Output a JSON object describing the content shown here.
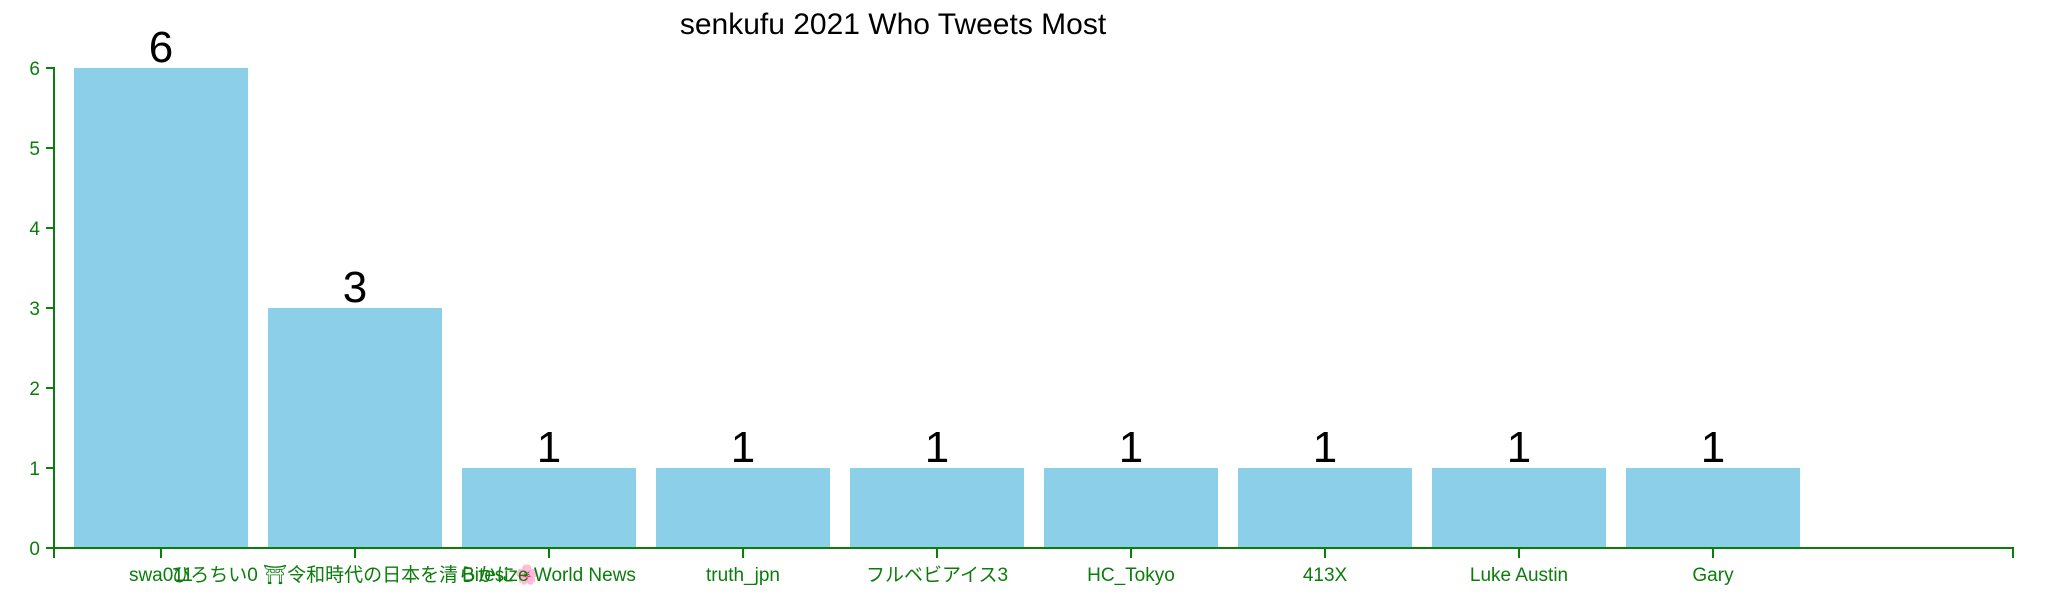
{
  "chart_data": {
    "type": "bar",
    "title": "senkufu 2021 Who Tweets Most",
    "xlabel": "",
    "ylabel": "",
    "categories": [
      "swa011",
      "ひろちい0 ⛩令和時代の日本を清らかに🌸",
      "Bitesize World News",
      "truth_jpn",
      "フルベビアイス3",
      "HC_Tokyo",
      "413X",
      "Luke Austin",
      "Gary"
    ],
    "values": [
      6,
      3,
      1,
      1,
      1,
      1,
      1,
      1,
      1
    ],
    "ylim": [
      0,
      6
    ],
    "yticks": [
      0,
      1,
      2,
      3,
      4,
      5,
      6
    ],
    "grid": false,
    "legend": "none",
    "colors": {
      "bar": "#8ccfe9",
      "axis": "#0a7d0a",
      "tick_label": "#0a7d0a",
      "value_label": "#000000",
      "title": "#000000"
    }
  }
}
